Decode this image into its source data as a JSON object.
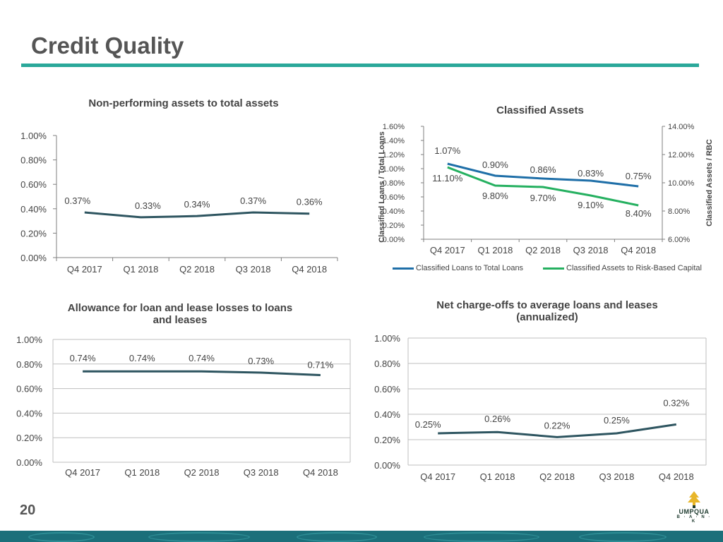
{
  "page": {
    "title": "Credit Quality",
    "page_number": "20",
    "logo": {
      "name": "UMPQUA",
      "sub": "B · A · N · K"
    },
    "colors": {
      "accent": "#2aa89a",
      "series_dark": "#2e5560",
      "series_blue": "#1f6fa8",
      "series_green": "#25b060",
      "grid": "#bfbfbf",
      "footer": "#1b6f7a"
    }
  },
  "chart_data": [
    {
      "id": "npa",
      "type": "line",
      "title": "Non-performing assets to total assets",
      "categories": [
        "Q4 2017",
        "Q1 2018",
        "Q2 2018",
        "Q3 2018",
        "Q4 2018"
      ],
      "values": [
        0.37,
        0.33,
        0.34,
        0.37,
        0.36
      ],
      "data_labels": [
        "0.37%",
        "0.33%",
        "0.34%",
        "0.37%",
        "0.36%"
      ],
      "y_ticks": [
        "0.00%",
        "0.20%",
        "0.40%",
        "0.60%",
        "0.80%",
        "1.00%"
      ],
      "ylim": [
        0,
        1.0
      ],
      "grid": false
    },
    {
      "id": "classified",
      "type": "line",
      "title": "Classified Assets",
      "categories": [
        "Q4 2017",
        "Q1 2018",
        "Q2 2018",
        "Q3 2018",
        "Q4 2018"
      ],
      "series": [
        {
          "name": "Classified Loans to Total Loans",
          "axis": "left",
          "values": [
            1.07,
            0.9,
            0.86,
            0.83,
            0.75
          ],
          "data_labels": [
            "1.07%",
            "0.90%",
            "0.86%",
            "0.83%",
            "0.75%"
          ]
        },
        {
          "name": "Classified Assets to Risk-Based Capital",
          "axis": "right",
          "values": [
            11.1,
            9.8,
            9.7,
            9.1,
            8.4
          ],
          "data_labels": [
            "11.10%",
            "9.80%",
            "9.70%",
            "9.10%",
            "8.40%"
          ]
        }
      ],
      "y_left_ticks": [
        "0.00%",
        "0.20%",
        "0.40%",
        "0.60%",
        "0.80%",
        "1.00%",
        "1.20%",
        "1.40%",
        "1.60%"
      ],
      "y_left_lim": [
        0,
        1.6
      ],
      "y_left_label": "Classified Loans / Total Loans",
      "y_right_ticks": [
        "6.00%",
        "8.00%",
        "10.00%",
        "12.00%",
        "14.00%"
      ],
      "y_right_lim": [
        6,
        14
      ],
      "y_right_label": "Classified Assets / RBC",
      "grid": false,
      "legend": "bottom"
    },
    {
      "id": "allowance",
      "type": "line",
      "title": [
        "Allowance for loan and lease losses to loans",
        "and leases"
      ],
      "categories": [
        "Q4 2017",
        "Q1 2018",
        "Q2 2018",
        "Q3 2018",
        "Q4 2018"
      ],
      "values": [
        0.74,
        0.74,
        0.74,
        0.73,
        0.71
      ],
      "data_labels": [
        "0.74%",
        "0.74%",
        "0.74%",
        "0.73%",
        "0.71%"
      ],
      "y_ticks": [
        "0.00%",
        "0.20%",
        "0.40%",
        "0.60%",
        "0.80%",
        "1.00%"
      ],
      "ylim": [
        0,
        1.0
      ],
      "grid": true
    },
    {
      "id": "nco",
      "type": "line",
      "title": [
        "Net charge-offs to average loans and leases",
        "(annualized)"
      ],
      "categories": [
        "Q4 2017",
        "Q1 2018",
        "Q2 2018",
        "Q3 2018",
        "Q4 2018"
      ],
      "values": [
        0.25,
        0.26,
        0.22,
        0.25,
        0.32
      ],
      "data_labels": [
        "0.25%",
        "0.26%",
        "0.22%",
        "0.25%",
        "0.32%"
      ],
      "y_ticks": [
        "0.00%",
        "0.20%",
        "0.40%",
        "0.60%",
        "0.80%",
        "1.00%"
      ],
      "ylim": [
        0,
        1.0
      ],
      "grid": true
    }
  ]
}
